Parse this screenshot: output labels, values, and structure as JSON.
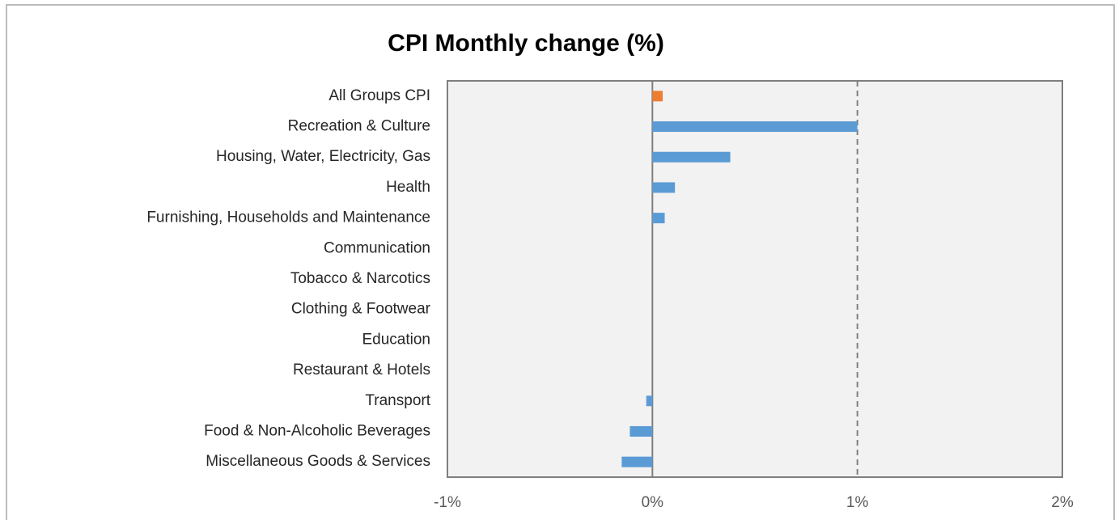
{
  "chart_data": {
    "type": "hbar",
    "title": "CPI Monthly change (%)",
    "categories": [
      "All Groups CPI",
      "Recreation & Culture",
      "Housing, Water, Electricity, Gas",
      "Health",
      "Furnishing, Households and Maintenance",
      "Communication",
      "Tobacco & Narcotics",
      "Clothing & Footwear",
      "Education",
      "Restaurant & Hotels",
      "Transport",
      "Food & Non-Alcoholic Beverages",
      "Miscellaneous Goods & Services"
    ],
    "values": [
      0.05,
      1.0,
      0.38,
      0.11,
      0.06,
      0,
      0,
      0,
      0,
      0,
      -0.03,
      -0.11,
      -0.15
    ],
    "colors": [
      "#ed7d31",
      "#5b9bd5",
      "#5b9bd5",
      "#5b9bd5",
      "#5b9bd5",
      "#5b9bd5",
      "#5b9bd5",
      "#5b9bd5",
      "#5b9bd5",
      "#5b9bd5",
      "#5b9bd5",
      "#5b9bd5",
      "#5b9bd5"
    ],
    "xlim": [
      -1,
      2
    ],
    "xticks": [
      {
        "value": -1,
        "label": "-1%"
      },
      {
        "value": 0,
        "label": "0%"
      },
      {
        "value": 1,
        "label": "1%"
      },
      {
        "value": 2,
        "label": "2%"
      }
    ],
    "grid": true
  }
}
